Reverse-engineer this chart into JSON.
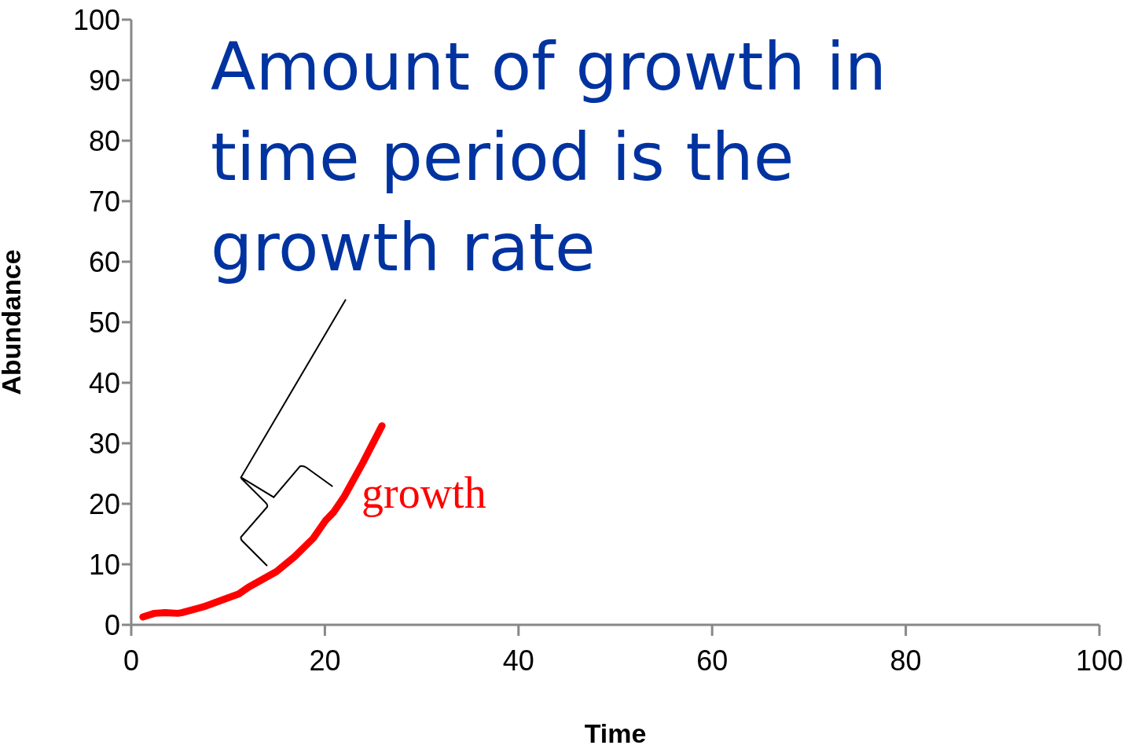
{
  "chart_data": {
    "type": "line",
    "xlabel": "Time",
    "ylabel": "Abundance",
    "annotations": [
      "Amount of growth in time period is the growth rate"
    ],
    "xlim": [
      0,
      100
    ],
    "xticks": [
      0,
      20,
      40,
      60,
      80,
      100
    ],
    "ylim": [
      0,
      100
    ],
    "yticks": [
      0,
      10,
      20,
      30,
      40,
      50,
      60,
      70,
      80,
      90,
      100
    ],
    "grid": false,
    "legend": false,
    "marker": "none",
    "line_style": "solid",
    "series": [
      {
        "name": "growth",
        "color": "#ff0000",
        "x": [
          1.2,
          2.4,
          3.5,
          4.8,
          5.2,
          7.5,
          11.1,
          12.1,
          15.0,
          16.9,
          18.8,
          20.1,
          20.9,
          22.0,
          23.9,
          25.9
        ],
        "values": [
          1.3,
          1.9,
          2.0,
          1.9,
          2.0,
          3.0,
          5.1,
          6.2,
          8.8,
          11.3,
          14.3,
          17.3,
          18.6,
          21.2,
          26.7,
          32.9
        ]
      }
    ]
  }
}
